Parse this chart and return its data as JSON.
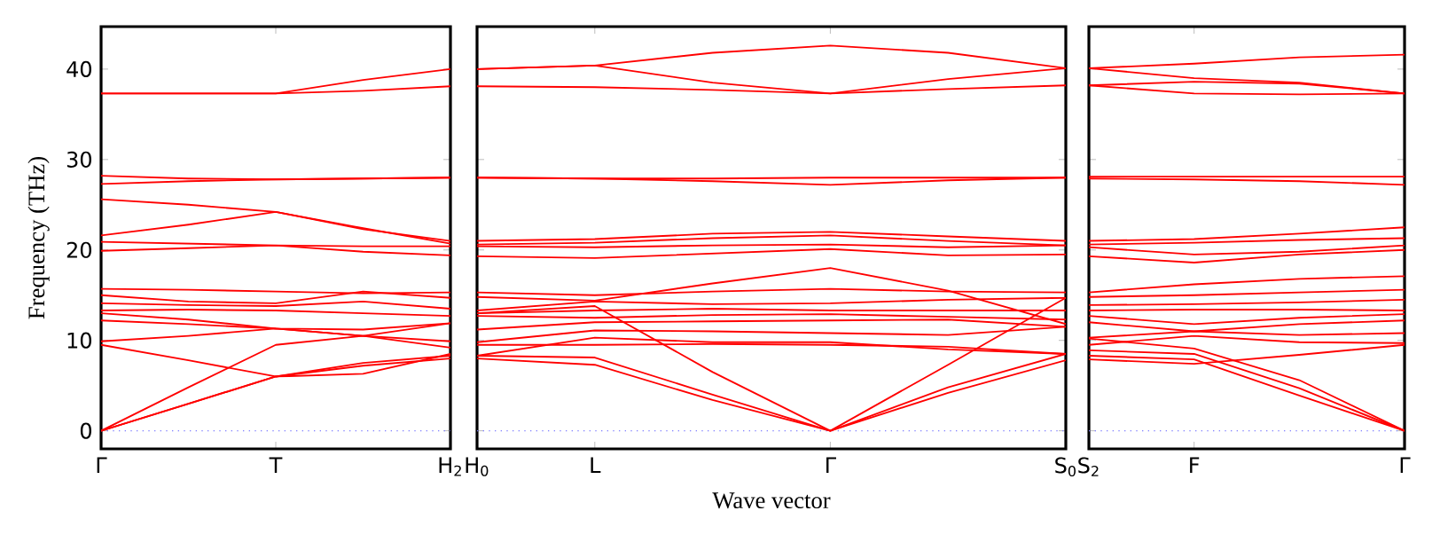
{
  "chart_data": [
    {
      "type": "line",
      "ylabel": "Frequency (THz)",
      "color": "#ff0000",
      "ylim": [
        -2,
        44.7
      ],
      "categories": [
        "Γ",
        null,
        "T",
        null,
        "H$_{2}$"
      ],
      "yticks": [
        0,
        10,
        20,
        30,
        40
      ],
      "ref_lines": [
        {
          "axis": "y",
          "value": 0,
          "color": "#8080ff",
          "line_style": "dotted"
        }
      ],
      "series": [
        {
          "values": [
            37.3,
            37.3,
            37.3,
            38.8,
            40.0
          ]
        },
        {
          "values": [
            37.3,
            37.3,
            37.3,
            37.6,
            38.1
          ]
        },
        {
          "values": [
            28.2,
            27.9,
            27.8,
            27.9,
            28.0
          ]
        },
        {
          "values": [
            27.3,
            27.6,
            27.8,
            27.9,
            28.0
          ]
        },
        {
          "values": [
            25.6,
            25.0,
            24.2,
            22.3,
            21.0
          ]
        },
        {
          "values": [
            21.6,
            22.8,
            24.2,
            22.4,
            20.7
          ]
        },
        {
          "values": [
            20.9,
            20.7,
            20.5,
            20.4,
            20.4
          ]
        },
        {
          "values": [
            19.9,
            20.2,
            20.5,
            19.8,
            19.4
          ]
        },
        {
          "values": [
            15.7,
            15.6,
            15.4,
            15.2,
            15.3
          ]
        },
        {
          "values": [
            15.0,
            14.3,
            14.1,
            15.4,
            14.7
          ]
        },
        {
          "values": [
            14.1,
            13.9,
            13.8,
            14.3,
            13.5
          ]
        },
        {
          "values": [
            13.3,
            13.4,
            13.3,
            13.0,
            12.7
          ]
        },
        {
          "values": [
            12.2,
            11.8,
            11.3,
            11.2,
            11.9
          ]
        },
        {
          "values": [
            13.0,
            12.3,
            11.3,
            10.5,
            9.9
          ]
        },
        {
          "values": [
            9.9,
            10.5,
            11.3,
            10.5,
            9.2
          ]
        },
        {
          "values": [
            9.5,
            7.8,
            6.0,
            6.3,
            8.5
          ]
        },
        {
          "values": [
            0,
            4.8,
            9.5,
            10.5,
            11.9
          ]
        },
        {
          "values": [
            0,
            3.0,
            6.0,
            7.2,
            8.0
          ]
        },
        {
          "values": [
            0,
            3.0,
            6.0,
            7.5,
            8.3
          ]
        }
      ]
    },
    {
      "type": "line",
      "xlabel": "Wave vector",
      "color": "#ff0000",
      "ylim": [
        -2,
        44.7
      ],
      "categories": [
        "H$_{0}$",
        "L",
        null,
        "Γ",
        null,
        "S$_{0}$"
      ],
      "yticks": [
        0,
        10,
        20,
        30,
        40
      ],
      "tick_labels": "x",
      "ref_lines": [
        {
          "axis": "y",
          "value": 0,
          "color": "#8080ff",
          "line_style": "dotted"
        }
      ],
      "series": [
        {
          "values": [
            40.0,
            40.4,
            41.8,
            42.6,
            41.8,
            40.1
          ]
        },
        {
          "values": [
            40.0,
            40.4,
            38.5,
            37.3,
            37.8,
            38.2
          ]
        },
        {
          "values": [
            38.1,
            38.0,
            37.7,
            37.3,
            38.9,
            40.1
          ]
        },
        {
          "values": [
            28.0,
            27.9,
            27.9,
            28.0,
            28.0,
            28.0
          ]
        },
        {
          "values": [
            28.0,
            27.9,
            27.6,
            27.2,
            27.7,
            28.0
          ]
        },
        {
          "values": [
            21.0,
            21.2,
            21.8,
            22.0,
            21.5,
            21.0
          ]
        },
        {
          "values": [
            20.6,
            20.8,
            21.3,
            21.6,
            21.0,
            20.5
          ]
        },
        {
          "values": [
            20.4,
            20.3,
            20.5,
            20.6,
            20.3,
            20.5
          ]
        },
        {
          "values": [
            19.3,
            19.1,
            19.6,
            20.1,
            19.4,
            19.5
          ]
        },
        {
          "values": [
            14.8,
            14.4,
            16.3,
            18.0,
            15.5,
            11.8
          ]
        },
        {
          "values": [
            15.3,
            15.0,
            15.4,
            15.7,
            15.4,
            15.3
          ]
        },
        {
          "values": [
            13.3,
            14.3,
            14.0,
            14.1,
            14.5,
            14.7
          ]
        },
        {
          "values": [
            13.0,
            13.3,
            13.5,
            13.3,
            13.3,
            13.3
          ]
        },
        {
          "values": [
            12.7,
            12.5,
            12.8,
            12.9,
            12.6,
            12.3
          ]
        },
        {
          "values": [
            11.2,
            12.0,
            12.1,
            12.2,
            12.3,
            11.5
          ]
        },
        {
          "values": [
            9.8,
            11.1,
            11.0,
            10.8,
            10.6,
            11.5
          ]
        },
        {
          "values": [
            8.3,
            10.3,
            9.8,
            9.8,
            9.0,
            8.5
          ]
        },
        {
          "values": [
            9.5,
            9.5,
            9.6,
            9.5,
            9.3,
            8.5
          ]
        },
        {
          "values": [
            8.0,
            7.3,
            3.4,
            0,
            4.2,
            7.8
          ]
        },
        {
          "values": [
            8.3,
            8.1,
            4.0,
            0,
            4.8,
            8.5
          ]
        },
        {
          "values": [
            13.0,
            13.8,
            6.5,
            0,
            7.3,
            14.7
          ]
        }
      ]
    },
    {
      "type": "line",
      "color": "#ff0000",
      "ylim": [
        -2,
        44.7
      ],
      "categories": [
        "S$_{2}$",
        "F",
        null,
        "Γ"
      ],
      "yticks": [
        0,
        10,
        20,
        30,
        40
      ],
      "tick_labels": "x",
      "ref_lines": [
        {
          "axis": "y",
          "value": 0,
          "color": "#8080ff",
          "line_style": "dotted"
        }
      ],
      "series": [
        {
          "values": [
            40.1,
            40.6,
            41.3,
            41.6
          ]
        },
        {
          "values": [
            40.1,
            39.0,
            38.5,
            37.3
          ]
        },
        {
          "values": [
            38.2,
            38.6,
            38.4,
            37.3
          ]
        },
        {
          "values": [
            38.2,
            37.3,
            37.2,
            37.3
          ]
        },
        {
          "values": [
            28.1,
            28.1,
            28.1,
            28.1
          ]
        },
        {
          "values": [
            27.9,
            27.8,
            27.6,
            27.2
          ]
        },
        {
          "values": [
            21.0,
            21.2,
            21.8,
            22.5
          ]
        },
        {
          "values": [
            20.6,
            20.8,
            21.1,
            21.3
          ]
        },
        {
          "values": [
            20.3,
            19.5,
            19.8,
            20.5
          ]
        },
        {
          "values": [
            19.3,
            18.6,
            19.5,
            20.0
          ]
        },
        {
          "values": [
            15.3,
            16.2,
            16.8,
            17.1
          ]
        },
        {
          "values": [
            14.8,
            15.0,
            15.3,
            15.6
          ]
        },
        {
          "values": [
            13.9,
            14.0,
            14.2,
            14.5
          ]
        },
        {
          "values": [
            13.3,
            13.4,
            13.4,
            13.3
          ]
        },
        {
          "values": [
            12.7,
            11.8,
            12.5,
            12.9
          ]
        },
        {
          "values": [
            12.0,
            11.0,
            11.8,
            12.2
          ]
        },
        {
          "values": [
            10.3,
            11.0,
            10.6,
            10.8
          ]
        },
        {
          "values": [
            9.5,
            10.5,
            9.8,
            9.7
          ]
        },
        {
          "values": [
            8.9,
            8.5,
            4.7,
            0
          ]
        },
        {
          "values": [
            8.3,
            7.9,
            3.9,
            0
          ]
        },
        {
          "values": [
            10.2,
            9.1,
            5.6,
            0
          ]
        },
        {
          "values": [
            7.9,
            7.4,
            8.4,
            9.5
          ]
        }
      ]
    }
  ]
}
